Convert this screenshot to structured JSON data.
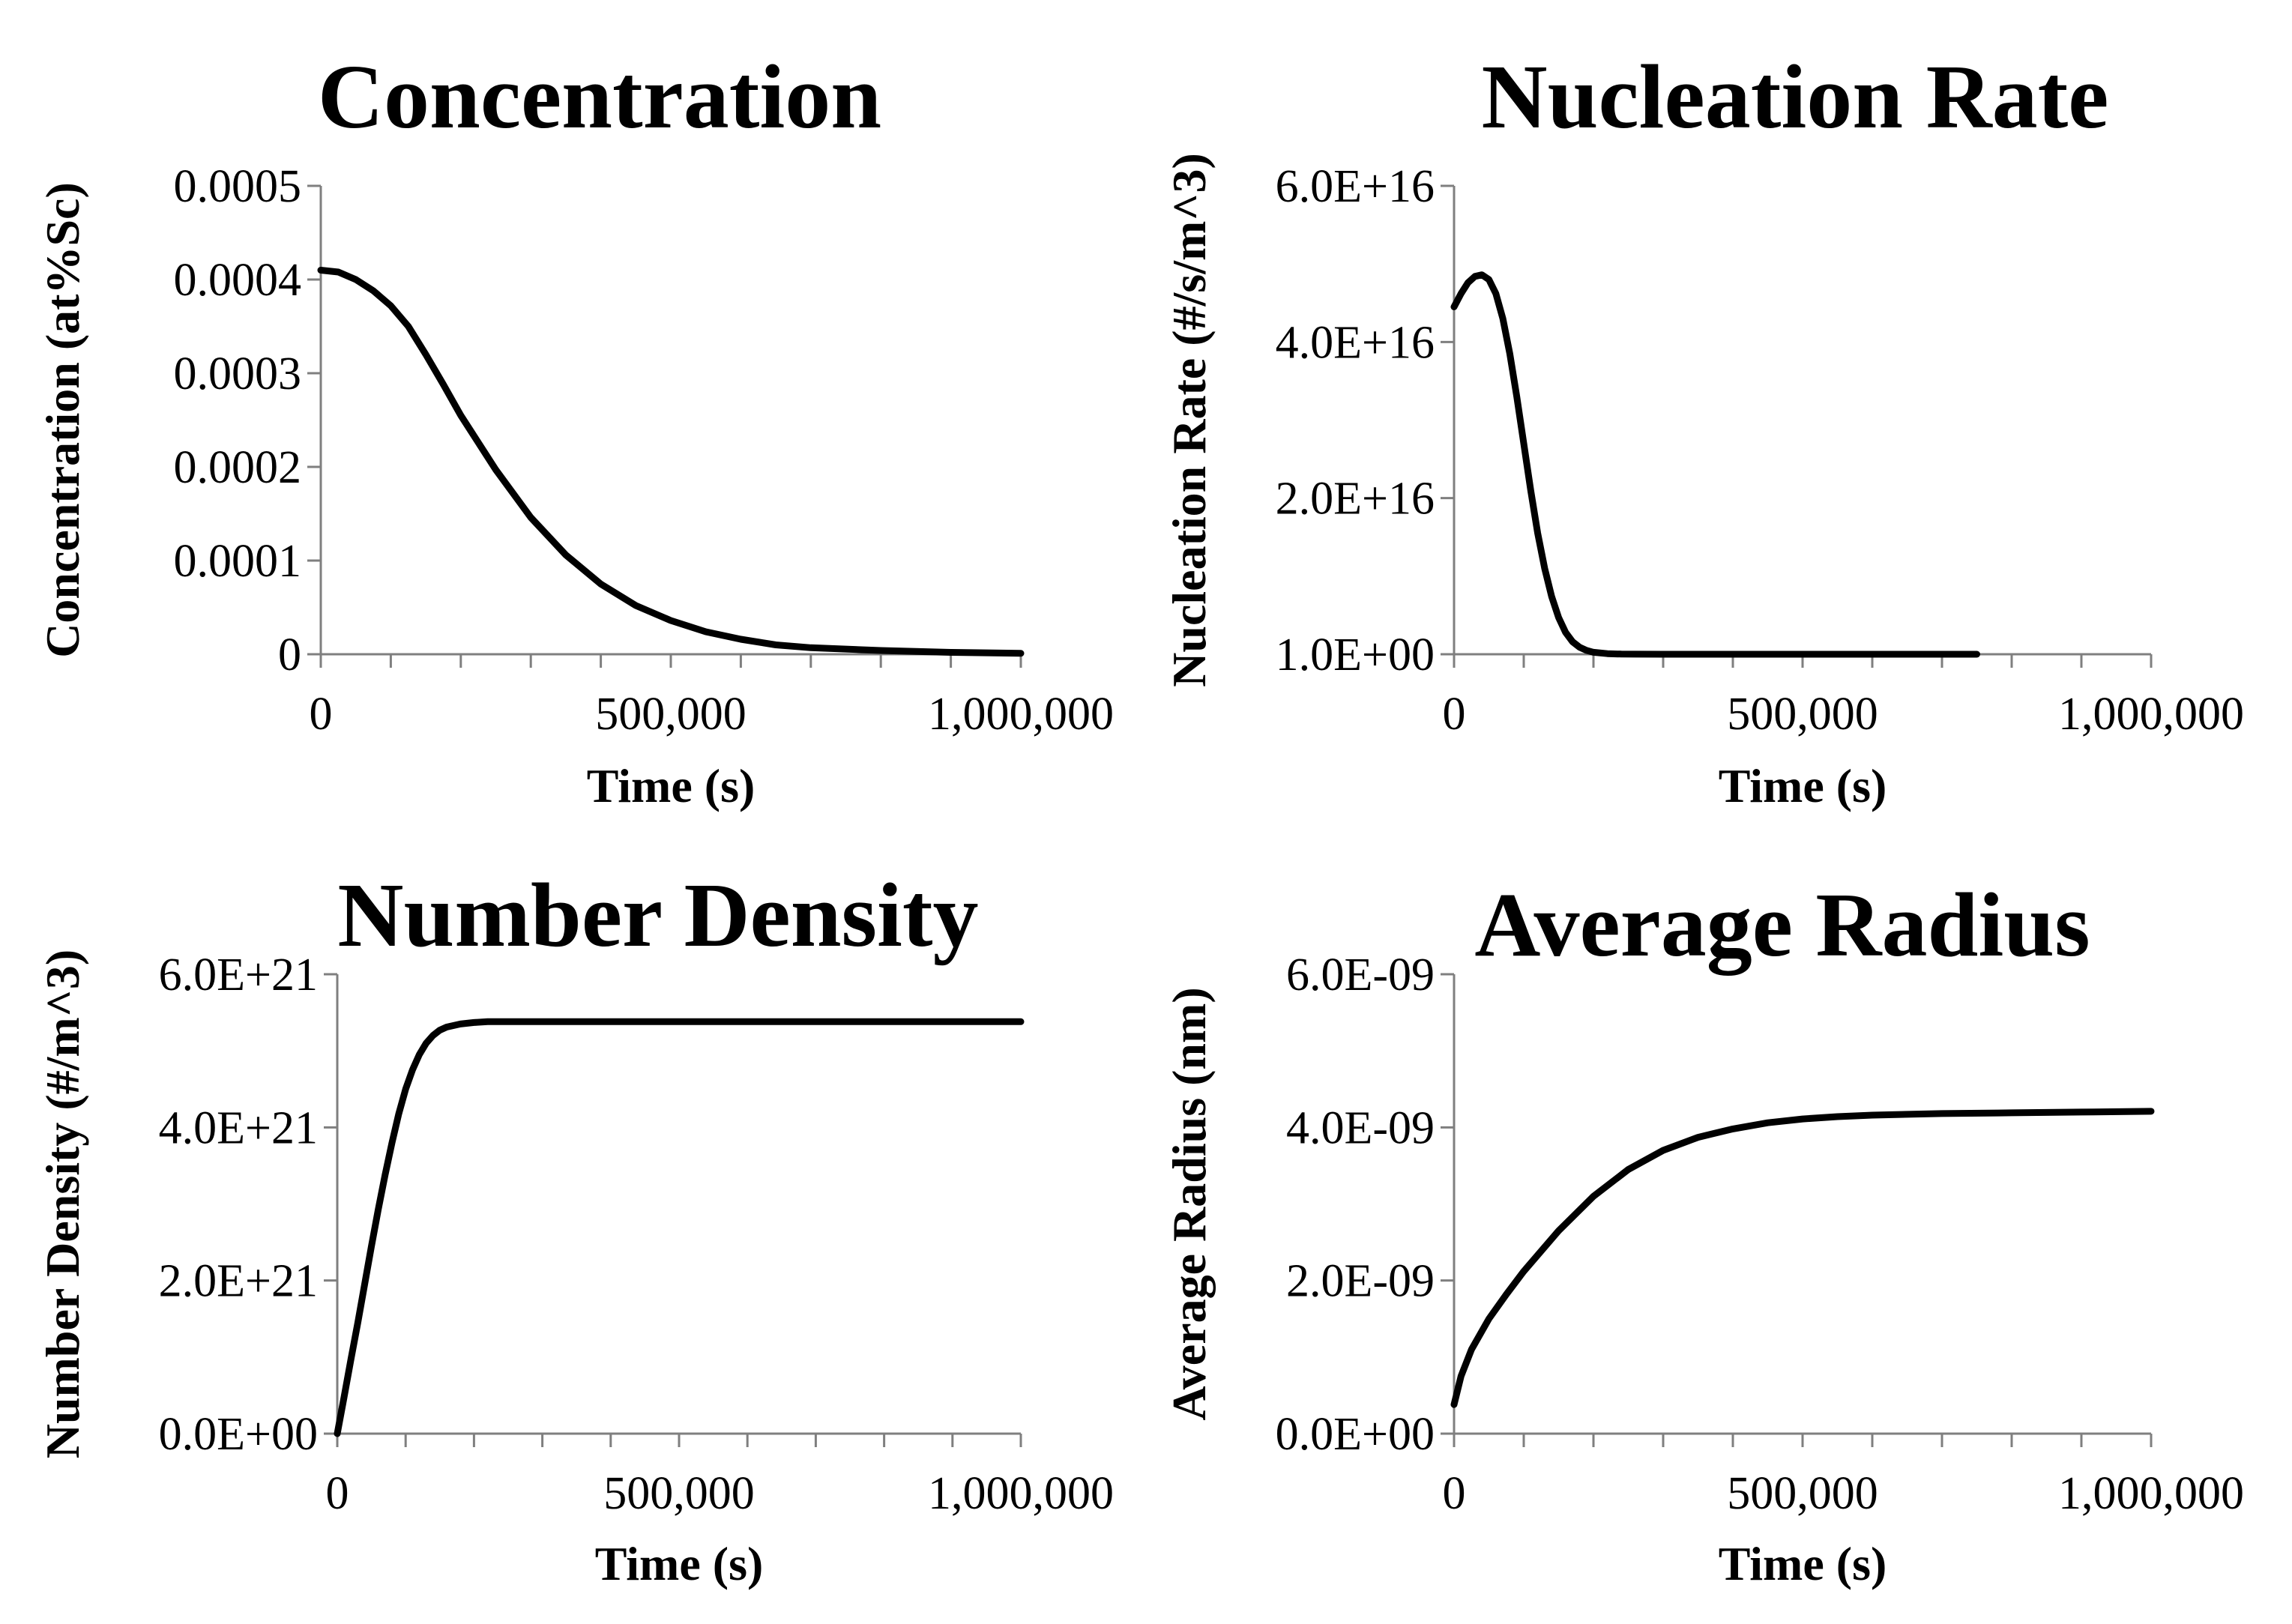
{
  "chart_data": [
    {
      "type": "line",
      "title": "Concentration",
      "xlabel": "Time (s)",
      "ylabel": "Concentration (at%Sc)",
      "xlim": [
        0,
        1000000
      ],
      "ylim": [
        0,
        0.0005
      ],
      "x_tick_labels": [
        "0",
        "500,000",
        "1,000,000"
      ],
      "y_tick_labels": [
        "0",
        "0.0001",
        "0.0002",
        "0.0003",
        "0.0004",
        "0.0005"
      ],
      "series": [
        {
          "name": "Concentration",
          "x": [
            0,
            25000,
            50000,
            75000,
            100000,
            125000,
            150000,
            175000,
            200000,
            250000,
            300000,
            350000,
            400000,
            450000,
            500000,
            550000,
            600000,
            650000,
            700000,
            800000,
            900000,
            1000000
          ],
          "values": [
            0.00041,
            0.000408,
            0.0004,
            0.000388,
            0.000372,
            0.00035,
            0.00032,
            0.000288,
            0.000255,
            0.000197,
            0.000146,
            0.000106,
            7.5e-05,
            5.2e-05,
            3.6e-05,
            2.4e-05,
            1.6e-05,
            1e-05,
            7e-06,
            4e-06,
            2e-06,
            1e-06
          ]
        }
      ]
    },
    {
      "type": "line",
      "title": "Nucleation Rate",
      "xlabel": "Time (s)",
      "ylabel": "Nucleation Rate (#/s/m^3)",
      "xlim": [
        0,
        1000000
      ],
      "ylim": [
        0,
        6e+16
      ],
      "x_tick_labels": [
        "0",
        "500,000",
        "1,000,000"
      ],
      "y_tick_labels": [
        "1.0E+00",
        "2.0E+16",
        "4.0E+16",
        "6.0E+16"
      ],
      "series": [
        {
          "name": "Nucleation Rate",
          "x": [
            0,
            10000,
            20000,
            30000,
            40000,
            50000,
            60000,
            70000,
            80000,
            90000,
            100000,
            110000,
            120000,
            130000,
            140000,
            150000,
            160000,
            170000,
            180000,
            190000,
            200000,
            220000,
            240000,
            260000,
            300000,
            400000,
            500000,
            600000,
            750000
          ],
          "values": [
            4.45e+16,
            4.62e+16,
            4.76e+16,
            4.84e+16,
            4.86e+16,
            4.8e+16,
            4.62e+16,
            4.3e+16,
            3.85e+16,
            3.3e+16,
            2.7e+16,
            2.1e+16,
            1.55e+16,
            1.1e+16,
            7400000000000000.0,
            4700000000000000.0,
            2800000000000000.0,
            1600000000000000.0,
            900000000000000.0,
            500000000000000.0,
            250000000000000.0,
            80000000000000.0,
            20000000000000.0,
            5000000000000.0,
            1000000000000.0,
            10000000000.0,
            100000000.0,
            1000000.0,
            1
          ]
        }
      ]
    },
    {
      "type": "line",
      "title": "Number Density",
      "xlabel": "Time (s)",
      "ylabel": "Number Density (#/m^3)",
      "xlim": [
        0,
        1000000
      ],
      "ylim": [
        0,
        6e+21
      ],
      "x_tick_labels": [
        "0",
        "500,000",
        "1,000,000"
      ],
      "y_tick_labels": [
        "0.0E+00",
        "2.0E+21",
        "4.0E+21",
        "6.0E+21"
      ],
      "series": [
        {
          "name": "Number Density",
          "x": [
            0,
            10000,
            20000,
            30000,
            40000,
            50000,
            60000,
            70000,
            80000,
            90000,
            100000,
            110000,
            120000,
            130000,
            140000,
            150000,
            160000,
            180000,
            200000,
            220000,
            250000,
            300000,
            400000,
            600000,
            800000,
            1000000
          ],
          "values": [
            0,
            4.8e+20,
            9.7e+20,
            1.45e+21,
            1.95e+21,
            2.45e+21,
            2.93e+21,
            3.38e+21,
            3.8e+21,
            4.18e+21,
            4.5e+21,
            4.75e+21,
            4.95e+21,
            5.1e+21,
            5.2e+21,
            5.27e+21,
            5.31e+21,
            5.35e+21,
            5.37e+21,
            5.38e+21,
            5.38e+21,
            5.38e+21,
            5.38e+21,
            5.38e+21,
            5.38e+21,
            5.38e+21
          ]
        }
      ]
    },
    {
      "type": "line",
      "title": "Average Radius",
      "xlabel": "Time (s)",
      "ylabel": "Average Radius (nm)",
      "xlim": [
        0,
        1000000
      ],
      "ylim": [
        0,
        6e-09
      ],
      "x_tick_labels": [
        "0",
        "500,000",
        "1,000,000"
      ],
      "y_tick_labels": [
        "0.0E+00",
        "2.0E-09",
        "4.0E-09",
        "6.0E-09"
      ],
      "series": [
        {
          "name": "Average Radius",
          "x": [
            0,
            10000,
            25000,
            50000,
            75000,
            100000,
            150000,
            200000,
            250000,
            300000,
            350000,
            400000,
            450000,
            500000,
            550000,
            600000,
            700000,
            800000,
            900000,
            1000000
          ],
          "values": [
            3.8e-10,
            7.5e-10,
            1.1e-09,
            1.5e-09,
            1.82e-09,
            2.12e-09,
            2.65e-09,
            3.1e-09,
            3.45e-09,
            3.7e-09,
            3.87e-09,
            3.98e-09,
            4.06e-09,
            4.11e-09,
            4.14e-09,
            4.16e-09,
            4.18e-09,
            4.19e-09,
            4.2e-09,
            4.21e-09
          ]
        }
      ]
    }
  ]
}
